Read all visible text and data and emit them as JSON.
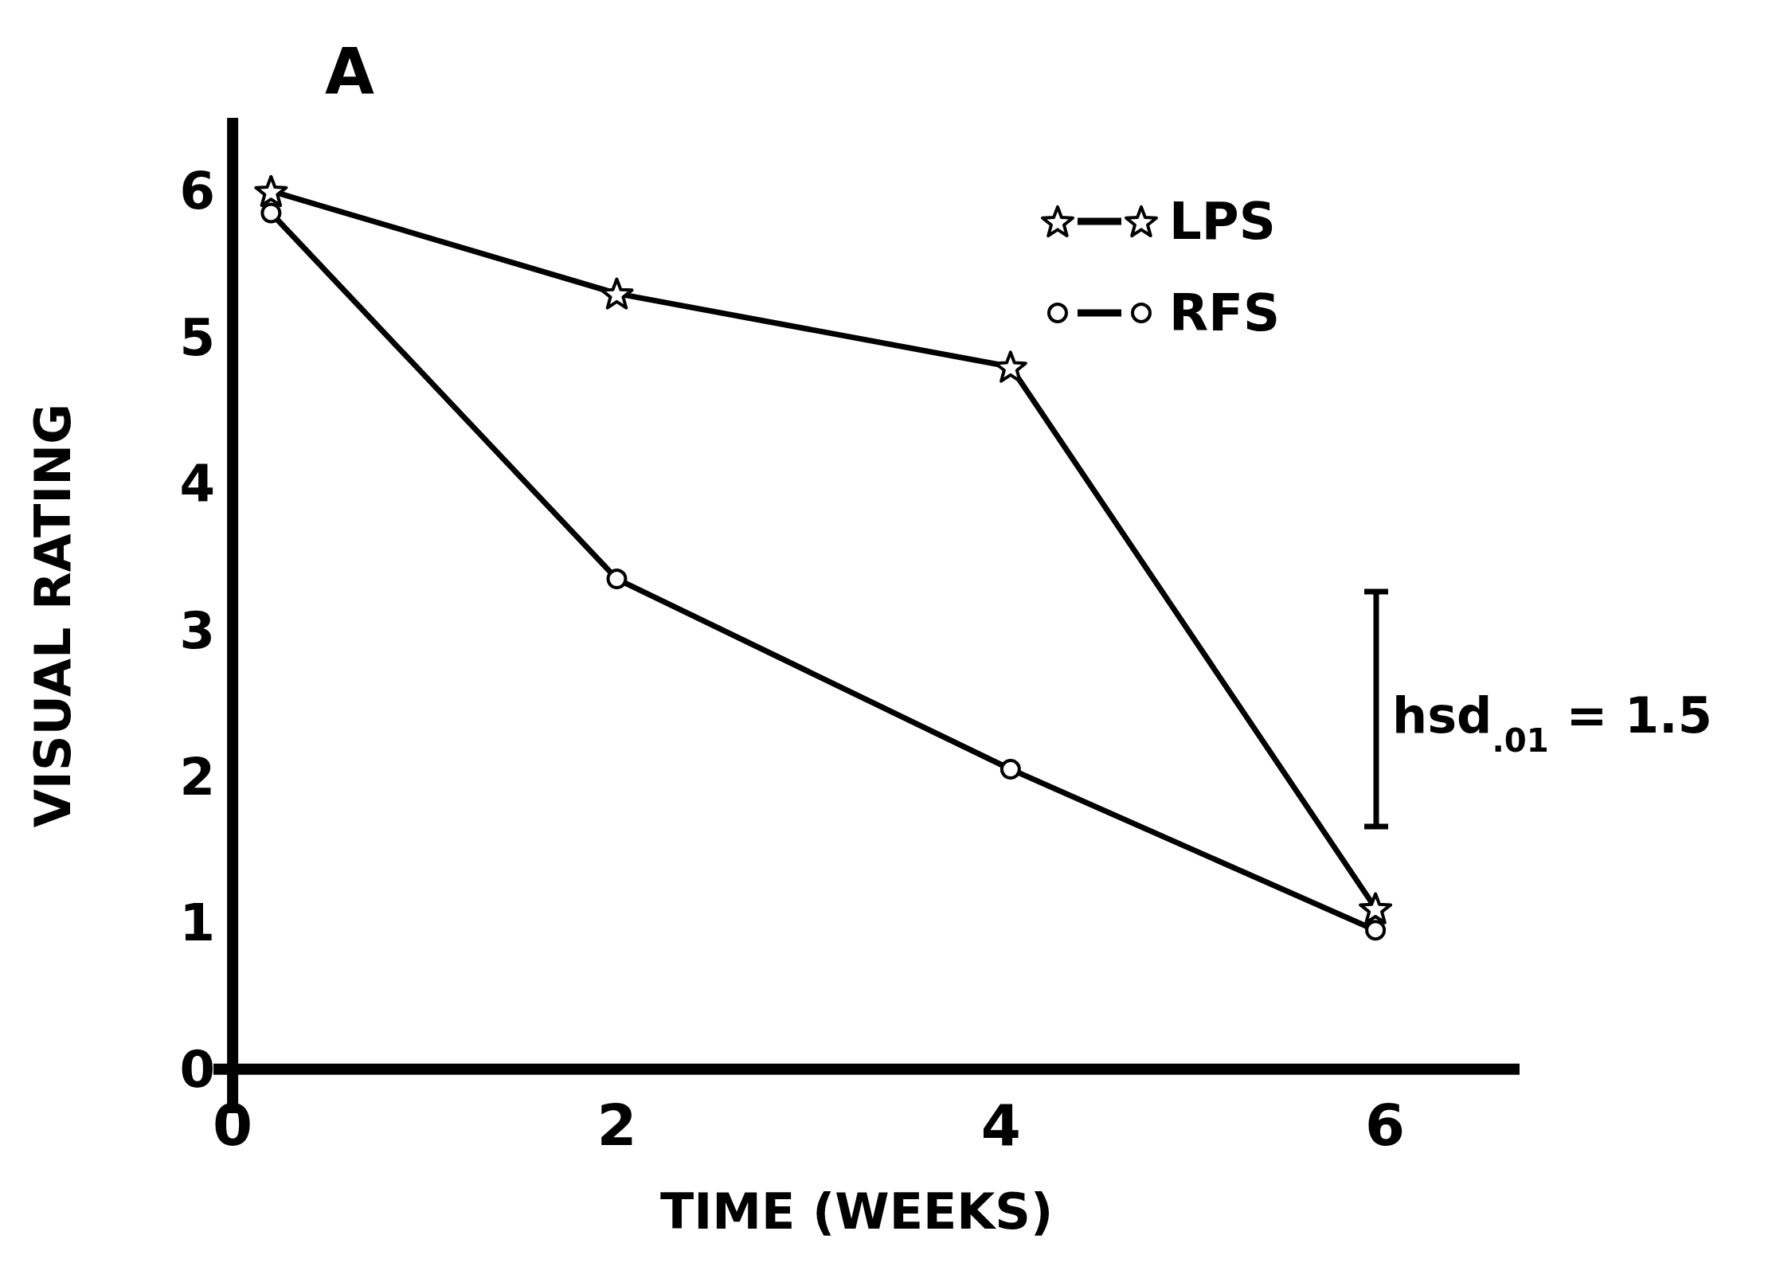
{
  "chart_data": {
    "type": "line",
    "title": "A",
    "xlabel": "TIME (WEEKS)",
    "ylabel": "VISUAL RATING",
    "xlim": [
      -0.1,
      6.7
    ],
    "ylim": [
      -0.3,
      6.5
    ],
    "xticks": [
      0,
      2,
      4,
      6
    ],
    "yticks": [
      0,
      1,
      2,
      3,
      4,
      5,
      6
    ],
    "grid": false,
    "legend": "top right",
    "line_style": "solid",
    "series": [
      {
        "name": "LPS",
        "color": "#000000",
        "marker": "star",
        "x": [
          0.2,
          2,
          4.05,
          5.95
        ],
        "values": [
          6.0,
          5.3,
          4.8,
          1.1
        ]
      },
      {
        "name": "RFS",
        "color": "#000000",
        "marker": "circle",
        "x": [
          0.2,
          2,
          4.05,
          5.95
        ],
        "values": [
          5.85,
          3.35,
          2.05,
          0.95
        ]
      }
    ],
    "annotations": [
      "hsd$_{.01}$ = 1.5"
    ]
  }
}
